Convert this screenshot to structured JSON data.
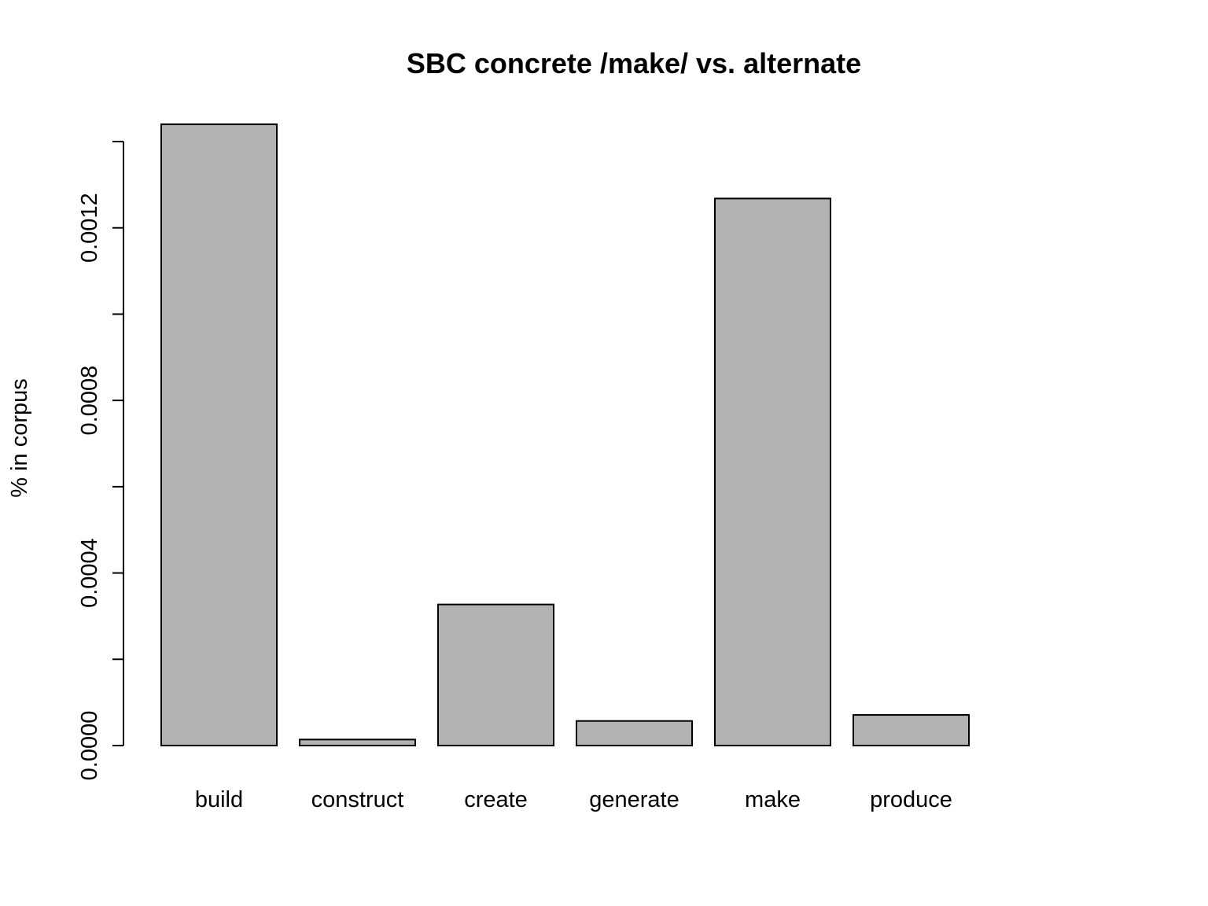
{
  "chart_data": {
    "type": "bar",
    "title": "SBC concrete /make/ vs. alternate",
    "xlabel": "",
    "ylabel": "% in corpus",
    "categories": [
      "build",
      "construct",
      "create",
      "generate",
      "make",
      "produce"
    ],
    "values": [
      0.00144,
      1.4e-05,
      0.000327,
      5.7e-05,
      0.001268,
      7.1e-05
    ],
    "ylim": [
      0,
      0.0014
    ],
    "y_ticks": [
      0,
      0.0002,
      0.0004,
      0.0006,
      0.0008,
      0.001,
      0.0012,
      0.0014
    ],
    "y_tick_labels": [
      "0.0000",
      "",
      "0.0004",
      "",
      "0.0008",
      "",
      "0.0012",
      ""
    ],
    "bar_color": "#b2b2b2",
    "grid": false,
    "legend": "none"
  }
}
